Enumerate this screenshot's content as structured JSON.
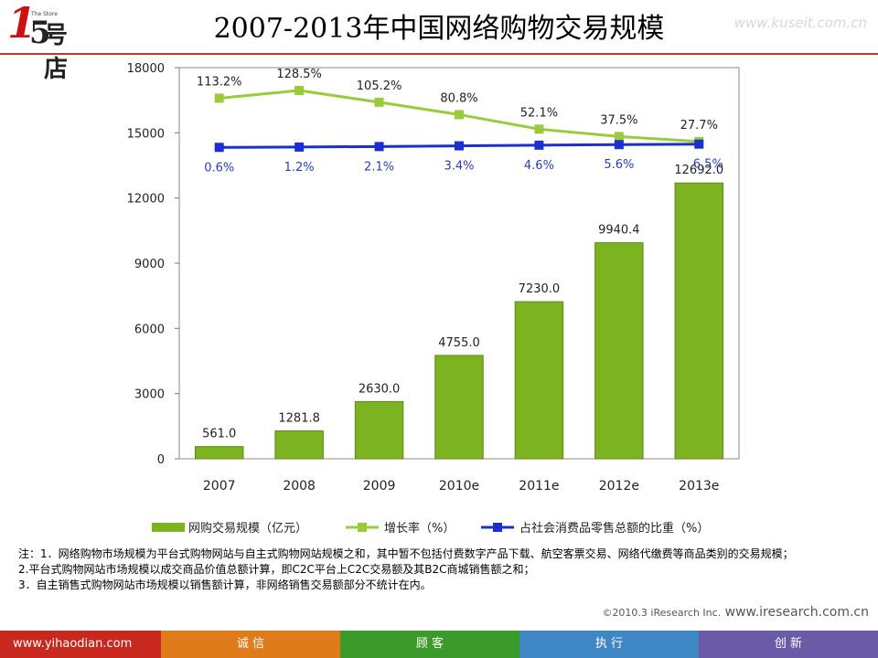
{
  "header": {
    "title": "2007-2013年中国网络购物交易规模",
    "logo_text": "号店",
    "logo_number_one": "1",
    "logo_number_five": "5",
    "logo_sub": "The Store",
    "watermark": "www.kuseit.com.cn"
  },
  "chart_data": {
    "type": "bar",
    "categories": [
      "2007",
      "2008",
      "2009",
      "2010e",
      "2011e",
      "2012e",
      "2013e"
    ],
    "y_ticks": [
      "18000",
      "15000",
      "12000",
      "9000",
      "6000",
      "3000",
      "0"
    ],
    "ylim": [
      0,
      18000
    ],
    "series": [
      {
        "name": "网购交易规模（亿元）",
        "kind": "bar",
        "values": [
          561.0,
          1281.8,
          2630.0,
          4755.0,
          7230.0,
          9940.4,
          12692.0
        ],
        "labels": [
          "561.0",
          "1281.8",
          "2630.0",
          "4755.0",
          "7230.0",
          "9940.4",
          "12692.0"
        ],
        "color": "#7bb321"
      },
      {
        "name": "增长率（%）",
        "kind": "line",
        "values": [
          113.2,
          128.5,
          105.2,
          80.8,
          52.1,
          37.5,
          27.7
        ],
        "labels": [
          "113.2%",
          "128.5%",
          "105.2%",
          "80.8%",
          "52.1%",
          "37.5%",
          "27.7%"
        ],
        "color": "#9acb3b"
      },
      {
        "name": "占社会消费品零售总额的比重（%）",
        "kind": "line",
        "values": [
          0.6,
          1.2,
          2.1,
          3.4,
          4.6,
          5.6,
          6.5
        ],
        "labels": [
          "0.6%",
          "1.2%",
          "2.1%",
          "3.4%",
          "4.6%",
          "5.6%",
          "6.5%"
        ],
        "color": "#1a2fd0"
      }
    ],
    "legend_position": "bottom"
  },
  "notes": [
    "注：1．网络购物市场规模为平台式购物网站与自主式购物网站规模之和，其中暂不包括付费数字产品下载、航空客票交易、网络代缴费等商品类别的交易规模；",
    "2.平台式购物网站市场规模以成交商品价值总额计算，即C2C平台上C2C交易额及其B2C商城销售额之和；",
    "3．自主销售式购物网站市场规模以销售额计算，非网络销售交易额部分不统计在内。"
  ],
  "copyright": {
    "year_text": "©2010.3 iResearch Inc.",
    "site": "www.iresearch.com.cn"
  },
  "footer": {
    "items": [
      "www.yihaodian.com",
      "诚 信",
      "顾 客",
      "执 行",
      "创 新"
    ]
  },
  "colors": {
    "bar": "#7bb321",
    "growth_line": "#9acb3b",
    "share_line": "#1a2fd0",
    "share_label": "#2a3db8",
    "title_rule": "#c0392b"
  }
}
